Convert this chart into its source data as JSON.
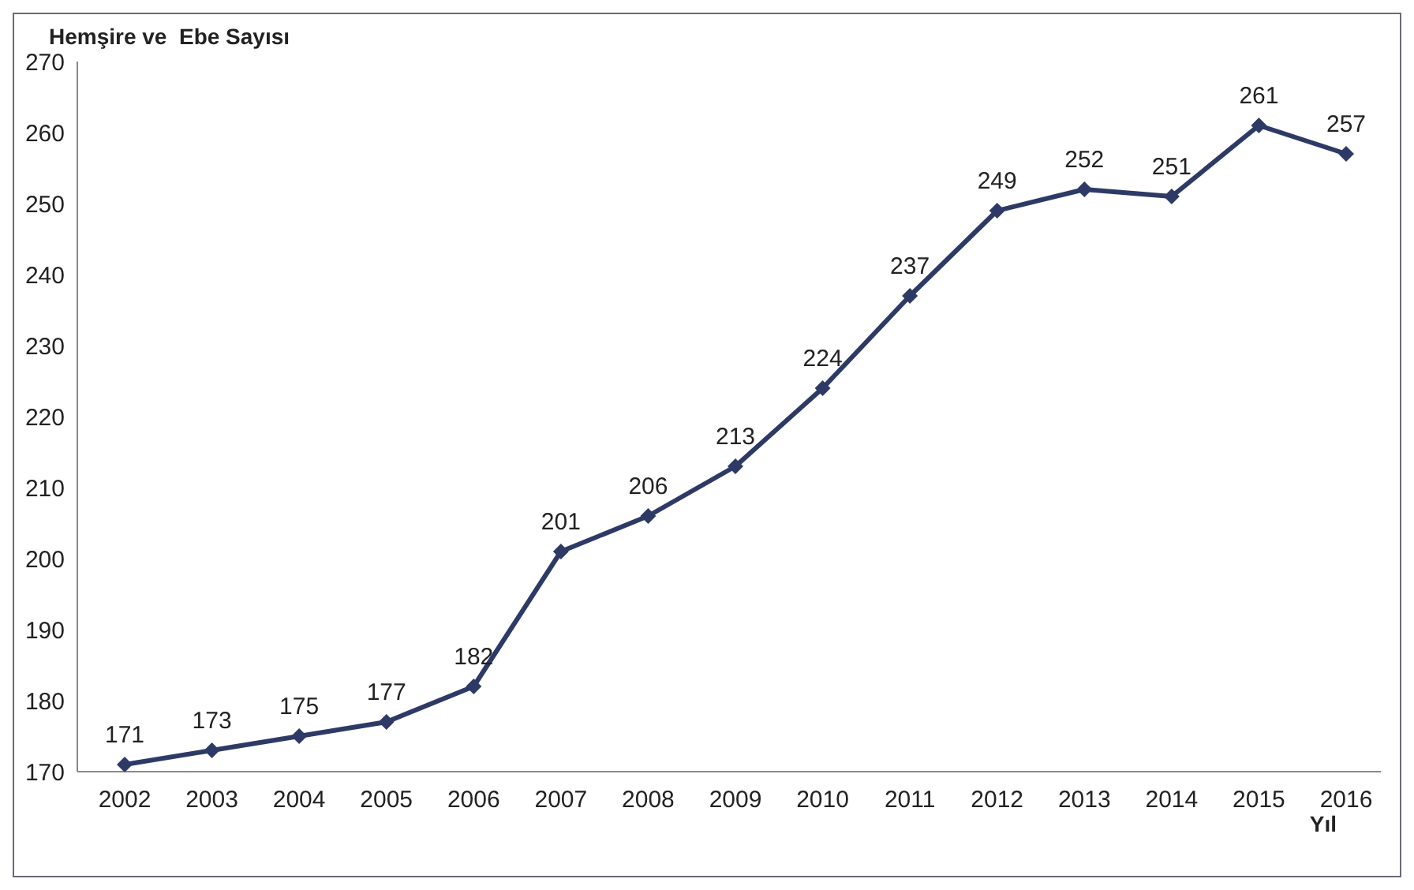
{
  "chart_data": {
    "type": "line",
    "ylabel": "Hemşire ve  Ebe Sayısı",
    "xlabel": "Yıl",
    "categories": [
      "2002",
      "2003",
      "2004",
      "2005",
      "2006",
      "2007",
      "2008",
      "2009",
      "2010",
      "2011",
      "2012",
      "2013",
      "2014",
      "2015",
      "2016"
    ],
    "series": [
      {
        "color": "#2e3a66",
        "values": [
          171,
          173,
          175,
          177,
          182,
          201,
          206,
          213,
          224,
          237,
          249,
          252,
          251,
          261,
          257
        ]
      }
    ],
    "ylim": [
      170,
      270
    ],
    "yticks": [
      170,
      180,
      190,
      200,
      210,
      220,
      230,
      240,
      250,
      260,
      270
    ],
    "data_labels": true,
    "marker": "diamond",
    "line_style": "solid"
  }
}
